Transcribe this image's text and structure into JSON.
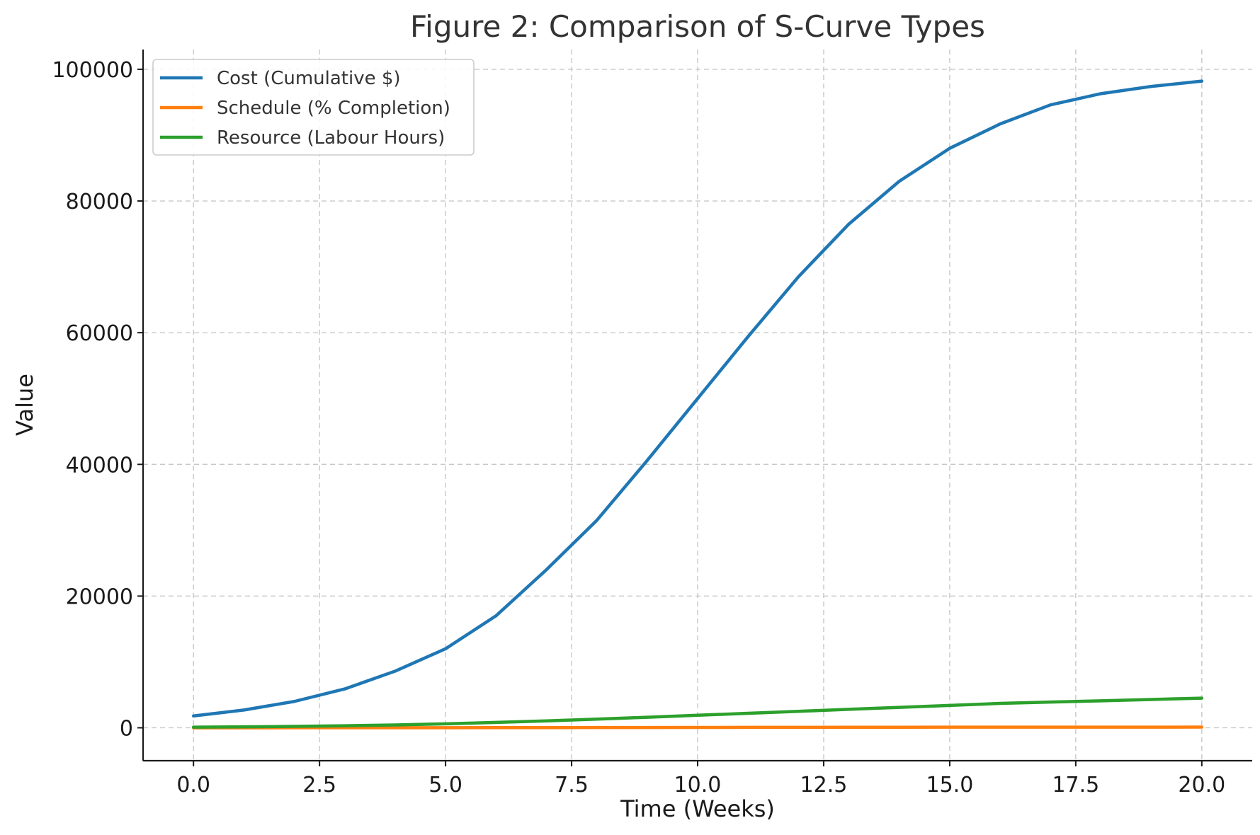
{
  "chart_data": {
    "type": "line",
    "title": "Figure 2: Comparison of S-Curve Types",
    "xlabel": "Time (Weeks)",
    "ylabel": "Value",
    "xlim": [
      -1,
      21
    ],
    "ylim": [
      -5000,
      103000
    ],
    "xticks": [
      0,
      2.5,
      5,
      7.5,
      10,
      12.5,
      15,
      17.5,
      20
    ],
    "xtick_labels": [
      "0.0",
      "2.5",
      "5.0",
      "7.5",
      "10.0",
      "12.5",
      "15.0",
      "17.5",
      "20.0"
    ],
    "yticks": [
      0,
      20000,
      40000,
      60000,
      80000,
      100000
    ],
    "ytick_labels": [
      "0",
      "20000",
      "40000",
      "60000",
      "80000",
      "100000"
    ],
    "grid": true,
    "legend_position": "top-left",
    "x": [
      0,
      1,
      2,
      3,
      4,
      5,
      6,
      7,
      8,
      9,
      10,
      11,
      12,
      13,
      14,
      15,
      16,
      17,
      18,
      19,
      20
    ],
    "series": [
      {
        "name": "Cost (Cumulative $)",
        "color": "#1f77b4",
        "values": [
          1800,
          2700,
          4000,
          5900,
          8600,
          12000,
          17000,
          24000,
          31500,
          40600,
          50000,
          59400,
          68500,
          76500,
          83000,
          88000,
          91700,
          94600,
          96300,
          97400,
          98200
        ]
      },
      {
        "name": "Schedule (% Completion)",
        "color": "#ff7f0e",
        "values": [
          1.8,
          2.7,
          4.0,
          5.9,
          8.6,
          12.0,
          17.0,
          24.0,
          31.5,
          40.6,
          50.0,
          59.4,
          68.5,
          76.5,
          83.0,
          88.0,
          91.7,
          94.6,
          96.3,
          97.4,
          98.2
        ]
      },
      {
        "name": "Resource (Labour Hours)",
        "color": "#2ca02c",
        "values": [
          90,
          140,
          210,
          310,
          430,
          600,
          810,
          1050,
          1320,
          1600,
          1900,
          2200,
          2500,
          2800,
          3100,
          3400,
          3700,
          3900,
          4100,
          4300,
          4500
        ]
      }
    ]
  }
}
